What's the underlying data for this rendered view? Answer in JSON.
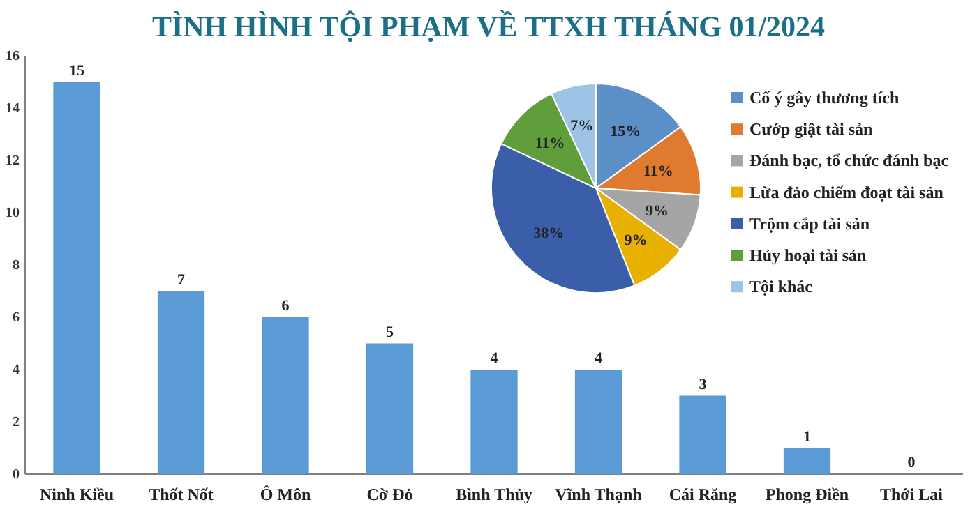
{
  "chart_data": [
    {
      "type": "bar",
      "title": "TÌNH HÌNH TỘI PHẠM VỀ TTXH THÁNG 01/2024",
      "categories": [
        "Ninh Kiều",
        "Thốt Nốt",
        "Ô Môn",
        "Cờ Đỏ",
        "Bình Thủy",
        "Vĩnh Thạnh",
        "Cái Răng",
        "Phong Điền",
        "Thới Lai"
      ],
      "values": [
        15,
        7,
        6,
        5,
        4,
        4,
        3,
        1,
        0
      ],
      "color": "#5b9bd5",
      "ylim": [
        0,
        16
      ],
      "yticks": [
        0,
        2,
        4,
        6,
        8,
        10,
        12,
        14,
        16
      ],
      "data_labels": true
    },
    {
      "type": "pie",
      "categories": [
        "Cố ý gây thương tích",
        "Cướp giật tài sản",
        "Đánh bạc, tổ chức đánh bạc",
        "Lừa đảo chiếm đoạt tài sản",
        "Trộm cắp tài sản",
        "Hủy hoại tài sản",
        "Tội khác"
      ],
      "values": [
        15,
        11,
        9,
        9,
        38,
        11,
        7
      ],
      "colors": [
        "#5b8fc7",
        "#e07a2e",
        "#a5a5a5",
        "#e8b000",
        "#3b5ea8",
        "#5f9e3a",
        "#9dc3e6"
      ],
      "value_labels": [
        "15%",
        "11%",
        "9%",
        "9%",
        "38%",
        "11%",
        "7%"
      ],
      "legend": "right"
    }
  ]
}
